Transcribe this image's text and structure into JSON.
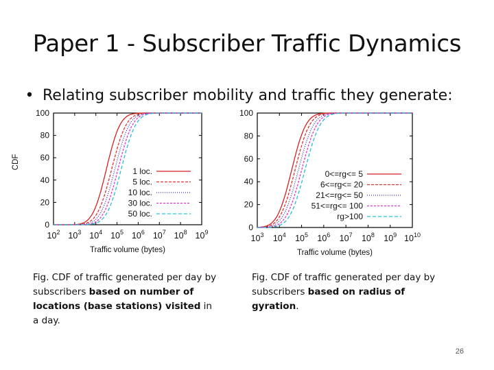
{
  "slide": {
    "title": "Paper 1 - Subscriber Traffic Dynamics",
    "bullet": "Relating subscriber mobility and traffic they generate:",
    "page_number": "26",
    "caption_left": {
      "p1": "Fig. CDF of traffic generated per day by subscribers ",
      "p2": "based on number of locations (base stations) visited",
      "p3": " in a day."
    },
    "caption_right": {
      "p1": "Fig. CDF of traffic generated per day by subscribers ",
      "p2": "based on radius of gyration",
      "p3": "."
    }
  },
  "chart_data": [
    {
      "type": "line",
      "title": "",
      "xlabel": "Traffic volume (bytes)",
      "ylabel": "CDF",
      "x_scale": "log",
      "xlim": [
        100,
        1000000000
      ],
      "ylim": [
        0,
        100
      ],
      "x_ticks": [
        {
          "base": "10",
          "exp": "2"
        },
        {
          "base": "10",
          "exp": "3"
        },
        {
          "base": "10",
          "exp": "4"
        },
        {
          "base": "10",
          "exp": "5"
        },
        {
          "base": "10",
          "exp": "6"
        },
        {
          "base": "10",
          "exp": "7"
        },
        {
          "base": "10",
          "exp": "8"
        },
        {
          "base": "10",
          "exp": "9"
        }
      ],
      "y_ticks": [
        "0",
        "20",
        "40",
        "60",
        "80",
        "100"
      ],
      "legend_position": "bottom-right",
      "series": [
        {
          "name": "1 loc.",
          "color": "#d42020",
          "dash": "",
          "median_log10": 4.5,
          "spread": 0.32
        },
        {
          "name": "5 loc.",
          "color": "#e03030",
          "dash": "4,2",
          "median_log10": 4.75,
          "spread": 0.34
        },
        {
          "name": "10 loc.",
          "color": "#3030c0",
          "dash": "1,2",
          "median_log10": 4.9,
          "spread": 0.34
        },
        {
          "name": "30 loc.",
          "color": "#e030d8",
          "dash": "3,2",
          "median_log10": 5.05,
          "spread": 0.34
        },
        {
          "name": "50 loc.",
          "color": "#20c0d8",
          "dash": "5,3",
          "median_log10": 5.2,
          "spread": 0.34
        }
      ]
    },
    {
      "type": "line",
      "title": "",
      "xlabel": "Traffic volume (bytes)",
      "ylabel": "",
      "x_scale": "log",
      "xlim": [
        1000,
        10000000000
      ],
      "ylim": [
        0,
        100
      ],
      "x_ticks": [
        {
          "base": "10",
          "exp": "3"
        },
        {
          "base": "10",
          "exp": "4"
        },
        {
          "base": "10",
          "exp": "5"
        },
        {
          "base": "10",
          "exp": "6"
        },
        {
          "base": "10",
          "exp": "7"
        },
        {
          "base": "10",
          "exp": "8"
        },
        {
          "base": "10",
          "exp": "9"
        },
        {
          "base": "10",
          "exp": "10"
        }
      ],
      "y_ticks": [
        "0",
        "20",
        "40",
        "60",
        "80",
        "100"
      ],
      "legend_position": "bottom-right",
      "series": [
        {
          "name": "0<=rg<= 5",
          "color": "#d42020",
          "dash": "",
          "median_log10": 4.55,
          "spread": 0.32
        },
        {
          "name": "6<=rg<= 20",
          "color": "#e03030",
          "dash": "4,2",
          "median_log10": 4.7,
          "spread": 0.33
        },
        {
          "name": "21<=rg<= 50",
          "color": "#3030c0",
          "dash": "1,2",
          "median_log10": 4.85,
          "spread": 0.34
        },
        {
          "name": "51<=rg<= 100",
          "color": "#e030d8",
          "dash": "3,2",
          "median_log10": 5.0,
          "spread": 0.34
        },
        {
          "name": "rg>100",
          "color": "#20c0d8",
          "dash": "5,3",
          "median_log10": 5.15,
          "spread": 0.34
        }
      ]
    }
  ]
}
